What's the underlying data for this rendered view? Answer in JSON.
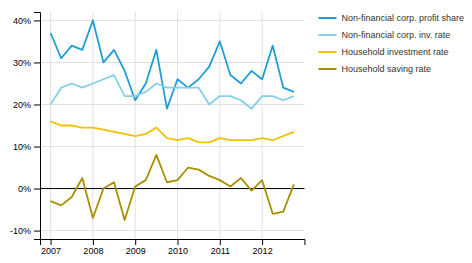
{
  "chart_data": {
    "type": "line",
    "x": [
      2007.0,
      2007.25,
      2007.5,
      2007.75,
      2008.0,
      2008.25,
      2008.5,
      2008.75,
      2009.0,
      2009.25,
      2009.5,
      2009.75,
      2010.0,
      2010.25,
      2010.5,
      2010.75,
      2011.0,
      2011.25,
      2011.5,
      2011.75,
      2012.0,
      2012.25,
      2012.5,
      2012.75
    ],
    "series": [
      {
        "name": "Non-financial corp. profit share",
        "color": "#1E9ED4",
        "values": [
          0.37,
          0.31,
          0.34,
          0.33,
          0.4,
          0.3,
          0.33,
          0.28,
          0.21,
          0.25,
          0.33,
          0.19,
          0.26,
          0.24,
          0.26,
          0.29,
          0.35,
          0.27,
          0.25,
          0.28,
          0.26,
          0.34,
          0.24,
          0.23
        ]
      },
      {
        "name": "Non-financial corp. inv. rate",
        "color": "#87CEEB",
        "values": [
          0.2,
          0.24,
          0.25,
          0.24,
          0.25,
          0.26,
          0.27,
          0.22,
          0.22,
          0.23,
          0.25,
          0.24,
          0.24,
          0.24,
          0.24,
          0.2,
          0.22,
          0.22,
          0.21,
          0.19,
          0.22,
          0.22,
          0.21,
          0.22
        ]
      },
      {
        "name": "Household investment rate",
        "color": "#F0C200",
        "values": [
          0.16,
          0.15,
          0.15,
          0.145,
          0.145,
          0.14,
          0.135,
          0.13,
          0.125,
          0.13,
          0.145,
          0.12,
          0.115,
          0.12,
          0.11,
          0.11,
          0.12,
          0.115,
          0.115,
          0.115,
          0.12,
          0.115,
          0.125,
          0.135
        ]
      },
      {
        "name": "Household saving rate",
        "color": "#A89000",
        "values": [
          -0.03,
          -0.04,
          -0.02,
          0.025,
          -0.07,
          0.0,
          0.015,
          -0.075,
          0.005,
          0.02,
          0.08,
          0.015,
          0.02,
          0.05,
          0.045,
          0.03,
          0.02,
          0.005,
          0.025,
          -0.005,
          0.02,
          -0.06,
          -0.055,
          0.01
        ]
      }
    ],
    "xlim": [
      2006.75,
      2013.0
    ],
    "xticks": [
      2007,
      2008,
      2009,
      2010,
      2011,
      2012
    ],
    "ylim": [
      -0.12,
      0.42
    ],
    "yticks": [
      {
        "value": -0.1,
        "label": "-10%"
      },
      {
        "value": 0.0,
        "label": "0%"
      },
      {
        "value": 0.1,
        "label": "10%"
      },
      {
        "value": 0.2,
        "label": "20%"
      },
      {
        "value": 0.3,
        "label": "30%"
      },
      {
        "value": 0.4,
        "label": "40%"
      }
    ],
    "grid": true,
    "legend": "right"
  }
}
